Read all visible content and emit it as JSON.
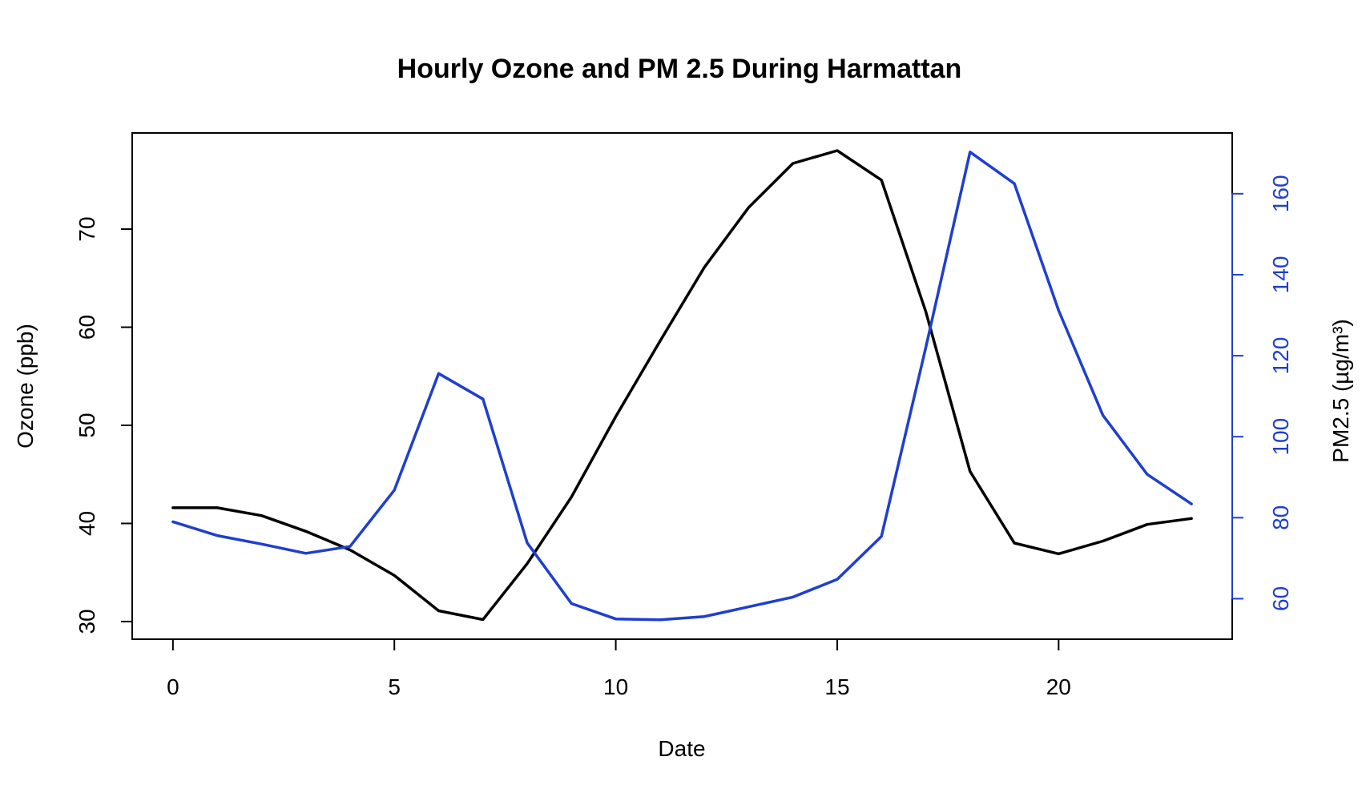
{
  "chart_data": {
    "type": "line",
    "title": "Hourly Ozone and PM 2.5 During Harmattan",
    "xlabel": "Date",
    "ylabel_left": "Ozone (ppb)",
    "ylabel_right": "PM2.5 (µg/m³)",
    "x": [
      0,
      1,
      2,
      3,
      4,
      5,
      6,
      7,
      8,
      9,
      10,
      11,
      12,
      13,
      14,
      15,
      16,
      17,
      18,
      19,
      20,
      21,
      22,
      23
    ],
    "xlim": [
      -0.92,
      23.92
    ],
    "xticks": [
      0,
      5,
      10,
      15,
      20
    ],
    "grid": false,
    "series": [
      {
        "name": "",
        "axis": "left",
        "color": "#000000",
        "values": [
          41.6,
          41.6,
          40.8,
          39.2,
          37.3,
          34.7,
          31.1,
          30.2,
          35.9,
          42.7,
          50.9,
          58.6,
          66.1,
          72.2,
          76.7,
          78.0,
          75.0,
          61.6,
          45.3,
          38.0,
          36.9,
          38.2,
          39.9,
          40.5
        ]
      },
      {
        "name": "",
        "axis": "right",
        "color": "#1f3fce",
        "values": [
          79.0,
          75.6,
          73.5,
          71.2,
          72.9,
          86.8,
          115.6,
          109.3,
          73.8,
          58.8,
          55.0,
          54.8,
          55.6,
          58.0,
          60.4,
          64.8,
          75.4,
          122.0,
          170.3,
          162.5,
          131.2,
          105.3,
          90.7,
          83.4
        ]
      }
    ],
    "ylim_left": [
      28.2,
      79.8
    ],
    "yticks_left": [
      30,
      40,
      50,
      60,
      70
    ],
    "ylim_right": [
      50.0,
      175.0
    ],
    "yticks_right": [
      60,
      80,
      100,
      120,
      140,
      160
    ],
    "colors": {
      "axis": "#000000",
      "right_axis": "#1f3fce"
    }
  }
}
